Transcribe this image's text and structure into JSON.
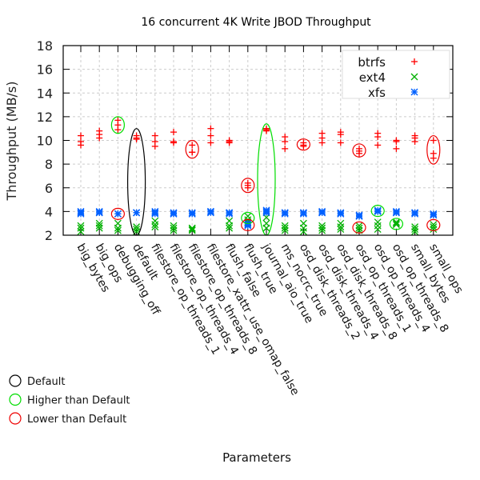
{
  "chart_data": {
    "type": "scatter",
    "title": "16 concurrent 4K Write JBOD Throughput",
    "xlabel": "Parameters",
    "ylabel": "Throughput (MB/s)",
    "ylim": [
      2,
      18
    ],
    "yticks": [
      2,
      4,
      6,
      8,
      10,
      12,
      14,
      16,
      18
    ],
    "grid": true,
    "legend_position": "top-right",
    "categories": [
      "big_bytes",
      "big_ops",
      "debugging_off",
      "default",
      "filestore_op_threads_1",
      "filestore_op_threads_4",
      "filestore_op_threads_8",
      "filestore_xattr_use_omap_false",
      "flush_false",
      "flush_true",
      "journal_aio_true",
      "ms_nocrc_true",
      "osd_disk_threads_2",
      "osd_disk_threads_4",
      "osd_disk_threads_8",
      "osd_op_threads_1",
      "osd_op_threads_4",
      "osd_op_threads_8",
      "small_bytes",
      "small_ops"
    ],
    "series": [
      {
        "name": "btrfs",
        "marker": "+",
        "color": "#ff0000",
        "values": [
          [
            10.4,
            9.9,
            9.6
          ],
          [
            10.8,
            10.5,
            10.2
          ],
          [
            11.7,
            11.3,
            10.9
          ],
          [
            10.4,
            10.2,
            10.1
          ],
          [
            10.4,
            9.9,
            9.5
          ],
          [
            10.7,
            9.9,
            9.8
          ],
          [
            9.6,
            9.0,
            9.0
          ],
          [
            11.0,
            10.4,
            9.8
          ],
          [
            10.0,
            9.9,
            9.8
          ],
          [
            6.4,
            6.2,
            6.0
          ],
          [
            11.0,
            10.9,
            10.8
          ],
          [
            10.3,
            9.9,
            9.3
          ],
          [
            9.8,
            9.6,
            9.5
          ],
          [
            10.6,
            10.2,
            9.8
          ],
          [
            10.7,
            10.5,
            9.8
          ],
          [
            9.3,
            9.1,
            8.9
          ],
          [
            10.6,
            10.3,
            9.6
          ],
          [
            10.0,
            9.9,
            9.3
          ],
          [
            10.4,
            10.2,
            9.9
          ],
          [
            10.0,
            8.9,
            8.5
          ]
        ]
      },
      {
        "name": "ext4",
        "marker": "x",
        "color": "#00b000",
        "values": [
          [
            2.8,
            2.6,
            2.3
          ],
          [
            3.0,
            2.8,
            2.6
          ],
          [
            3.0,
            2.6,
            2.4
          ],
          [
            2.7,
            2.5,
            2.3
          ],
          [
            3.2,
            2.9,
            2.7
          ],
          [
            2.8,
            2.6,
            2.4
          ],
          [
            2.6,
            2.5,
            2.4
          ],
          [],
          [
            3.2,
            2.8,
            2.6
          ],
          [
            3.6,
            3.3,
            3.1
          ],
          [
            3.5,
            3.0,
            2.6
          ],
          [
            2.8,
            2.6,
            2.4
          ],
          [
            3.0,
            2.6,
            2.3
          ],
          [
            2.8,
            2.6,
            2.4
          ],
          [
            3.0,
            2.7,
            2.5
          ],
          [
            2.8,
            2.6,
            2.4
          ],
          [
            3.1,
            2.8,
            2.5
          ],
          [
            3.1,
            3.0,
            2.9
          ],
          [
            2.7,
            2.5,
            2.3
          ],
          [
            2.9,
            2.7,
            2.5
          ]
        ]
      },
      {
        "name": "xfs",
        "marker": "*",
        "color": "#0060ff",
        "values": [
          [
            4.0,
            3.9,
            3.8
          ],
          [
            4.0,
            3.9,
            3.9
          ],
          [
            3.8,
            3.8,
            3.8
          ],
          [
            3.9,
            3.9,
            3.9
          ],
          [
            4.0,
            3.9,
            3.8
          ],
          [
            3.9,
            3.8,
            3.8
          ],
          [
            3.9,
            3.8,
            3.8
          ],
          [
            4.0,
            4.0,
            3.9
          ],
          [
            3.9,
            3.9,
            3.8
          ],
          [
            3.0,
            2.9,
            2.8
          ],
          [
            4.1,
            4.0,
            3.9
          ],
          [
            3.9,
            3.9,
            3.8
          ],
          [
            3.9,
            3.9,
            3.8
          ],
          [
            4.0,
            3.9,
            3.9
          ],
          [
            3.9,
            3.8,
            3.8
          ],
          [
            3.7,
            3.6,
            3.6
          ],
          [
            4.1,
            4.0,
            4.0
          ],
          [
            4.0,
            3.9,
            3.9
          ],
          [
            3.9,
            3.9,
            3.8
          ],
          [
            3.8,
            3.7,
            3.7
          ]
        ]
      }
    ],
    "annotations": [
      {
        "category": "default",
        "kind": "Default",
        "ymin": 2.0,
        "ymax": 11.0
      },
      {
        "category": "debugging_off",
        "kind": "Higher than Default",
        "ymin": 10.6,
        "ymax": 12.0
      },
      {
        "category": "debugging_off",
        "kind": "Lower than Default",
        "ymin": 3.4,
        "ymax": 4.2
      },
      {
        "category": "filestore_op_threads_8",
        "kind": "Lower than Default",
        "ymin": 8.5,
        "ymax": 10.0
      },
      {
        "category": "flush_true",
        "kind": "Lower than Default",
        "ymin": 5.6,
        "ymax": 6.8
      },
      {
        "category": "flush_true",
        "kind": "Higher than Default",
        "ymin": 3.0,
        "ymax": 3.9
      },
      {
        "category": "flush_true",
        "kind": "Lower than Default",
        "ymin": 2.4,
        "ymax": 3.3
      },
      {
        "category": "journal_aio_true",
        "kind": "Higher than Default",
        "ymin": 2.0,
        "ymax": 11.4
      },
      {
        "category": "osd_disk_threads_2",
        "kind": "Lower than Default",
        "ymin": 9.2,
        "ymax": 10.1
      },
      {
        "category": "osd_op_threads_1",
        "kind": "Lower than Default",
        "ymin": 8.6,
        "ymax": 9.7
      },
      {
        "category": "osd_op_threads_1",
        "kind": "Lower than Default",
        "ymin": 2.2,
        "ymax": 3.1
      },
      {
        "category": "osd_op_threads_4",
        "kind": "Higher than Default",
        "ymin": 3.6,
        "ymax": 4.5
      },
      {
        "category": "osd_op_threads_8",
        "kind": "Higher than Default",
        "ymin": 2.5,
        "ymax": 3.4
      },
      {
        "category": "small_ops",
        "kind": "Lower than Default",
        "ymin": 8.0,
        "ymax": 10.4
      },
      {
        "category": "small_ops",
        "kind": "Lower than Default",
        "ymin": 2.4,
        "ymax": 3.3
      }
    ],
    "circle_legend": [
      {
        "label": "Default",
        "color": "#000000"
      },
      {
        "label": "Higher than Default",
        "color": "#00dd00"
      },
      {
        "label": "Lower than Default",
        "color": "#ee0000"
      }
    ]
  }
}
